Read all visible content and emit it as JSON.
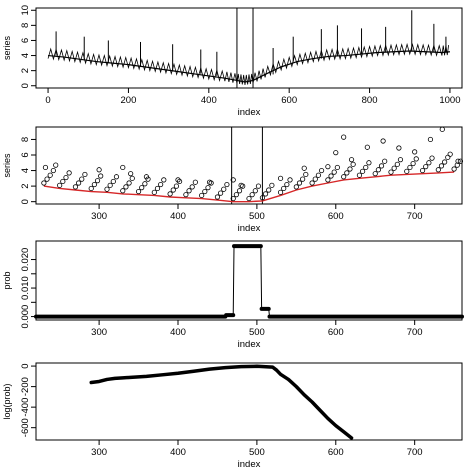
{
  "chart_data": [
    {
      "type": "line",
      "xlabel": "index",
      "ylabel": "series",
      "xlim": [
        -30,
        1030
      ],
      "ylim": [
        -0.3,
        10.3
      ],
      "xticks": [
        0,
        200,
        400,
        600,
        800,
        1000
      ],
      "yticks": [
        0,
        2,
        4,
        6,
        8,
        10
      ],
      "vlines": [
        470,
        510
      ],
      "series": [
        {
          "x": [
            0,
            40,
            80,
            120,
            160,
            200,
            240,
            280,
            320,
            360,
            400,
            440,
            470,
            490,
            510,
            540,
            580,
            620,
            660,
            700,
            740,
            780,
            820,
            860,
            900,
            940,
            980,
            1000
          ],
          "y": [
            4.0,
            3.8,
            3.5,
            3.2,
            3.0,
            2.8,
            2.5,
            2.2,
            1.9,
            1.6,
            1.3,
            1.0,
            0.7,
            0.5,
            0.7,
            1.5,
            2.5,
            3.2,
            3.6,
            3.9,
            4.0,
            4.2,
            4.4,
            4.5,
            4.6,
            4.5,
            4.4,
            4.5
          ]
        }
      ],
      "spikes": [
        [
          20,
          7.2
        ],
        [
          90,
          6.5
        ],
        [
          150,
          6.0
        ],
        [
          230,
          5.8
        ],
        [
          310,
          5.5
        ],
        [
          380,
          4.8
        ],
        [
          420,
          4.5
        ],
        [
          560,
          5.0
        ],
        [
          610,
          6.5
        ],
        [
          680,
          7.5
        ],
        [
          720,
          8.0
        ],
        [
          780,
          7.6
        ],
        [
          840,
          7.8
        ],
        [
          905,
          10.0
        ],
        [
          960,
          8.2
        ],
        [
          990,
          6.5
        ]
      ]
    },
    {
      "type": "scatter",
      "xlabel": "index",
      "ylabel": "series",
      "xlim": [
        220,
        760
      ],
      "ylim": [
        -0.3,
        9.6
      ],
      "xticks": [
        300,
        400,
        500,
        600,
        700
      ],
      "yticks": [
        0,
        2,
        4,
        6,
        8
      ],
      "vlines": [
        468,
        507
      ],
      "series": [
        {
          "name": "",
          "x": [
            230,
            250,
            270,
            290,
            310,
            330,
            350,
            370,
            390,
            410,
            430,
            450,
            470,
            490,
            507,
            530,
            550,
            570,
            590,
            610,
            630,
            650,
            670,
            690,
            710,
            730,
            750
          ],
          "y": [
            2.0,
            1.7,
            1.5,
            1.3,
            1.2,
            1.0,
            0.9,
            0.8,
            0.6,
            0.5,
            0.4,
            0.2,
            0.0,
            0.0,
            0.1,
            0.8,
            1.5,
            2.0,
            2.4,
            2.8,
            3.0,
            3.2,
            3.4,
            3.5,
            3.6,
            3.7,
            3.8
          ]
        }
      ],
      "points_upper": [
        [
          232,
          4.4
        ],
        [
          245,
          4.7
        ],
        [
          300,
          4.1
        ],
        [
          330,
          4.4
        ],
        [
          340,
          3.6
        ],
        [
          360,
          3.2
        ],
        [
          400,
          2.8
        ],
        [
          440,
          2.5
        ],
        [
          470,
          2.8
        ],
        [
          480,
          2.1
        ],
        [
          530,
          3.0
        ],
        [
          560,
          4.3
        ],
        [
          590,
          4.5
        ],
        [
          600,
          6.3
        ],
        [
          610,
          8.3
        ],
        [
          620,
          5.4
        ],
        [
          640,
          7.0
        ],
        [
          660,
          7.8
        ],
        [
          680,
          6.9
        ],
        [
          700,
          6.4
        ],
        [
          720,
          8.0
        ],
        [
          735,
          9.3
        ],
        [
          745,
          6.1
        ],
        [
          755,
          5.2
        ]
      ],
      "line_color": "#d62728"
    },
    {
      "type": "scatter",
      "xlabel": "index",
      "ylabel": "prob",
      "xlim": [
        220,
        760
      ],
      "ylim": [
        -0.0012,
        0.0265
      ],
      "xticks": [
        300,
        400,
        500,
        600,
        700
      ],
      "yticks": [
        0.0,
        0.005,
        0.01,
        0.015,
        0.02
      ],
      "ytick_labels": [
        "0.000",
        "",
        "0.010",
        "",
        "0.020"
      ],
      "series": [
        {
          "x": [
            220,
            460,
            461,
            470,
            471,
            505,
            506,
            508,
            510,
            515,
            516,
            760
          ],
          "y": [
            0.0,
            0.0,
            0.0005,
            0.0005,
            0.0247,
            0.0247,
            0.0027,
            0.0027,
            0.0027,
            0.0027,
            0.0,
            0.0
          ]
        }
      ]
    },
    {
      "type": "scatter",
      "xlabel": "index",
      "ylabel": "log(prob)",
      "xlim": [
        220,
        760
      ],
      "ylim": [
        -720,
        30
      ],
      "xticks": [
        300,
        400,
        500,
        600,
        700
      ],
      "yticks": [
        0,
        -200,
        -400,
        -600
      ],
      "series": [
        {
          "x": [
            290,
            300,
            305,
            310,
            320,
            330,
            340,
            360,
            380,
            400,
            420,
            440,
            460,
            480,
            500,
            520,
            525,
            530,
            540,
            550,
            560,
            570,
            580,
            590,
            600,
            610,
            620
          ],
          "y": [
            -160,
            -150,
            -140,
            -130,
            -120,
            -115,
            -110,
            -100,
            -85,
            -70,
            -50,
            -30,
            -15,
            -5,
            -2,
            -10,
            -40,
            -80,
            -130,
            -200,
            -280,
            -350,
            -430,
            -510,
            -580,
            -640,
            -700
          ]
        }
      ]
    }
  ]
}
